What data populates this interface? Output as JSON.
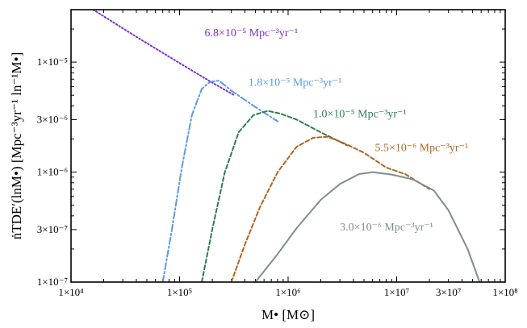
{
  "chart_data": {
    "type": "line",
    "xscale": "log",
    "yscale": "log",
    "xlim": [
      10000,
      100000000
    ],
    "ylim": [
      1e-07,
      3e-05
    ],
    "xlabel": "M• [M⊙]",
    "ylabel": "ṅTDE′(lnM•) [Mpc⁻³yr⁻¹ ln⁻¹M•]",
    "x_ticks": [
      {
        "value": 10000,
        "label": "1×10⁴"
      },
      {
        "value": 100000,
        "label": "1×10⁵"
      },
      {
        "value": 1000000,
        "label": "1×10⁶"
      },
      {
        "value": 10000000,
        "label": "1×10⁷"
      },
      {
        "value": 30000000,
        "label": "3×10⁷"
      },
      {
        "value": 100000000,
        "label": "1×10⁸"
      }
    ],
    "y_ticks": [
      {
        "value": 1e-07,
        "label": "1×10⁻⁷"
      },
      {
        "value": 3e-07,
        "label": "3×10⁻⁷"
      },
      {
        "value": 1e-06,
        "label": "1×10⁻⁶"
      },
      {
        "value": 3e-06,
        "label": "3×10⁻⁶"
      },
      {
        "value": 1e-05,
        "label": "1×10⁻⁵"
      }
    ],
    "series": [
      {
        "name": "6.8×10⁻⁵ Mpc⁻³yr⁻¹",
        "color": "#7b2fd6",
        "style": "dotted",
        "x": [
          16000,
          40000,
          100000,
          200000,
          320000
        ],
        "y": [
          3e-05,
          1.7e-05,
          9.8e-06,
          6.5e-06,
          5e-06
        ]
      },
      {
        "name": "1.8×10⁻⁵ Mpc⁻³yr⁻¹",
        "color": "#5b9ae6",
        "style": "dashdot",
        "x": [
          70000,
          85000,
          105000,
          130000,
          160000,
          190000,
          230000,
          300000,
          500000,
          800000
        ],
        "y": [
          1e-07,
          3e-07,
          1.1e-06,
          3.3e-06,
          5.7e-06,
          6.6e-06,
          6.8e-06,
          5.5e-06,
          3.9e-06,
          2.9e-06
        ]
      },
      {
        "name": "1.0×10⁻⁵ Mpc⁻³yr⁻¹",
        "color": "#2e7d4f",
        "style": "dashed",
        "x": [
          160000,
          200000,
          260000,
          350000,
          480000,
          650000,
          850000,
          1200000,
          2000000,
          3500000
        ],
        "y": [
          1e-07,
          3e-07,
          9.8e-07,
          2.3e-06,
          3.3e-06,
          3.6e-06,
          3.4e-06,
          3e-06,
          2.3e-06,
          1.75e-06
        ]
      },
      {
        "name": "5.5×10⁻⁶ Mpc⁻³yr⁻¹",
        "color": "#b2651e",
        "style": "dashed",
        "x": [
          300000,
          400000,
          550000,
          800000,
          1200000,
          1700000,
          2300000,
          3200000,
          5000000,
          8000000,
          12000000,
          20000000
        ],
        "y": [
          1e-07,
          2.2e-07,
          4.8e-07,
          1e-06,
          1.7e-06,
          2.05e-06,
          2.1e-06,
          1.85e-06,
          1.5e-06,
          1.1e-06,
          9.6e-07,
          7e-07
        ]
      },
      {
        "name": "3.0×10⁻⁶ Mpc⁻³yr⁻¹",
        "color": "#7d8f8b",
        "style": "solid",
        "x": [
          500000,
          800000,
          1200000,
          2000000,
          3000000,
          4500000,
          6000000,
          9000000,
          14000000,
          22000000,
          30000000,
          45000000,
          58000000
        ],
        "y": [
          1e-07,
          1.8e-07,
          3.1e-07,
          5.6e-07,
          7.8e-07,
          9.6e-07,
          1e-06,
          9.5e-07,
          8.6e-07,
          6.8e-07,
          4.5e-07,
          2e-07,
          1e-07
        ]
      }
    ],
    "annotations": [
      {
        "text": "6.8×10⁻⁵ Mpc⁻³yr⁻¹",
        "x": 170000,
        "y": 1.72e-05,
        "color": "#7b2fd6"
      },
      {
        "text": "1.8×10⁻⁵ Mpc⁻³yr⁻¹",
        "x": 430000,
        "y": 6.1e-06,
        "color": "#5b9ae6"
      },
      {
        "text": "1.0×10⁻⁵ Mpc⁻³yr⁻¹",
        "x": 1700000,
        "y": 3.15e-06,
        "color": "#2e7d4f"
      },
      {
        "text": "5.5×10⁻⁶ Mpc⁻³yr⁻¹",
        "x": 6300000,
        "y": 1.55e-06,
        "color": "#b2651e"
      },
      {
        "text": "3.0×10⁻⁶ Mpc⁻³yr⁻¹",
        "x": 3000000,
        "y": 2.95e-07,
        "color": "#7d8f8b"
      }
    ]
  }
}
